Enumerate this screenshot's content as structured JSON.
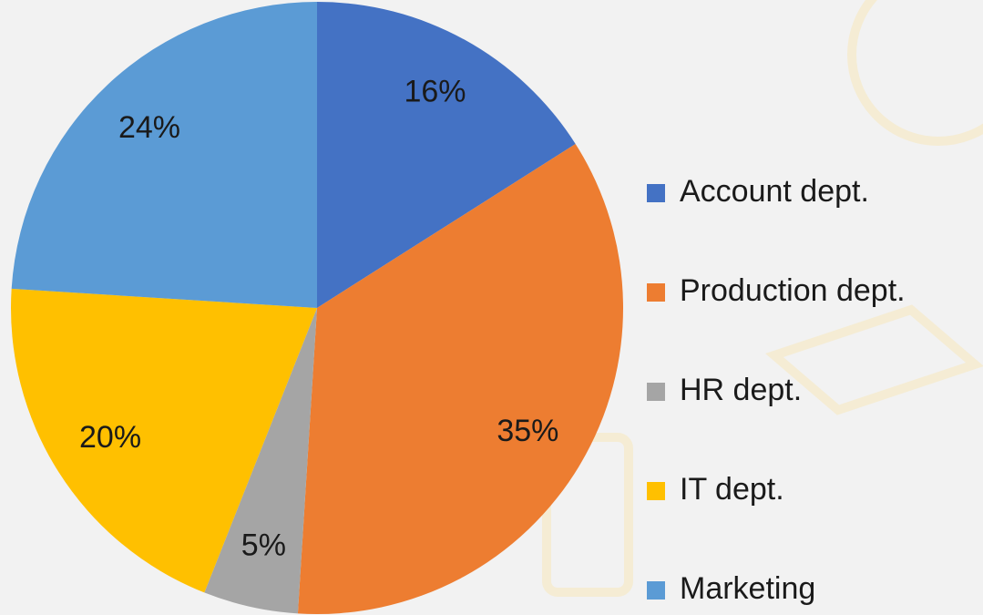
{
  "chart_data": {
    "type": "pie",
    "categories": [
      "Account dept.",
      "Production dept.",
      "HR dept.",
      "IT dept.",
      "Marketing"
    ],
    "values": [
      16,
      35,
      5,
      20,
      24
    ],
    "value_labels": [
      "16%",
      "35%",
      "5%",
      "20%",
      "24%"
    ],
    "colors": [
      "#4472c4",
      "#ed7d31",
      "#a5a5a5",
      "#ffc000",
      "#5b9bd5"
    ],
    "legend": "right"
  }
}
